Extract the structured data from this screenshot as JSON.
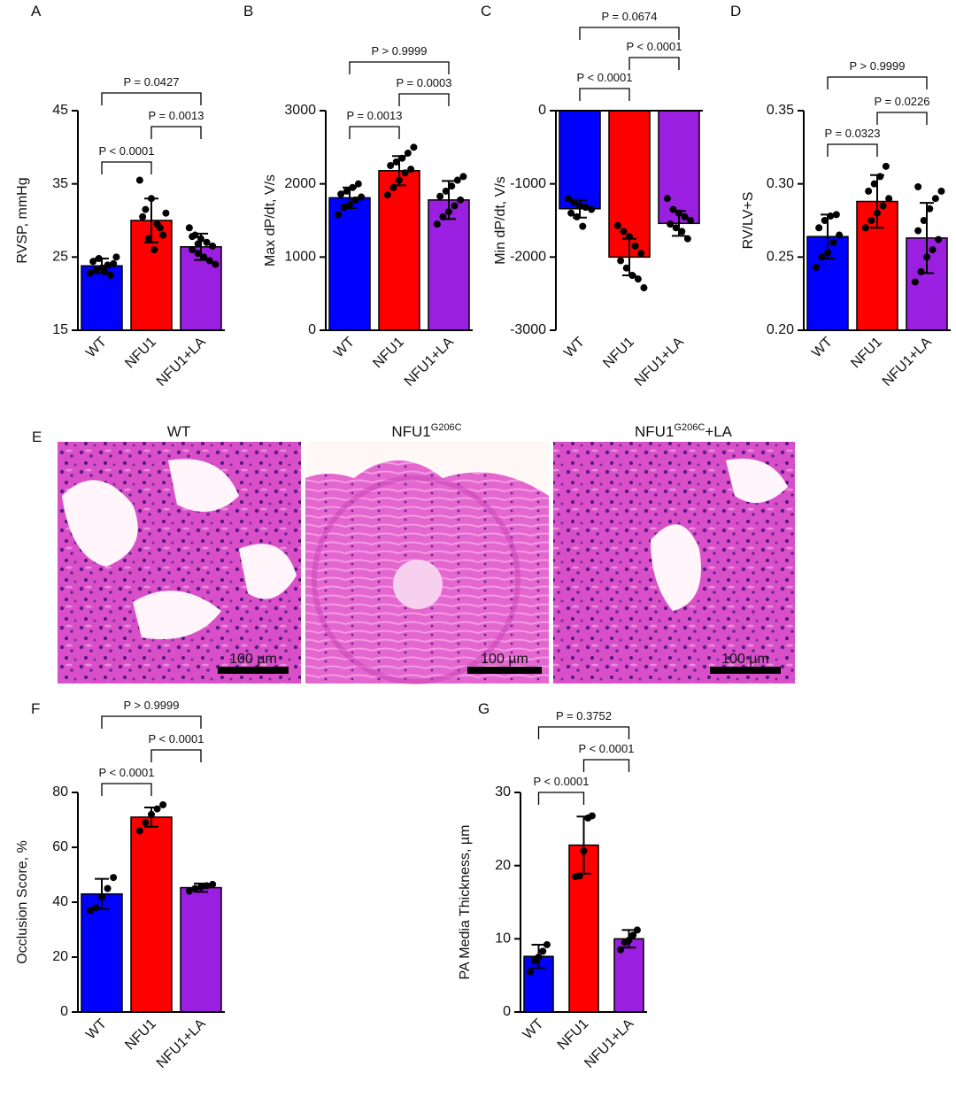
{
  "chart_data": [
    {
      "type": "bar",
      "panel_label": "A",
      "ylabel": "RVSP, mmHg",
      "categories": [
        "WT",
        "NFU1",
        "NFU1+LA"
      ],
      "colors": [
        "#0000ff",
        "#ff0000",
        "#9a1fe0"
      ],
      "values": [
        23.8,
        30.0,
        26.4
      ],
      "errors": [
        1.0,
        3.0,
        1.8
      ],
      "points": [
        [
          22.8,
          23.2,
          23.5,
          23.9,
          24.1,
          24.4,
          24.8,
          23.0,
          22.5,
          25.0
        ],
        [
          35.5,
          31.5,
          33.0,
          29.5,
          28.0,
          30.5,
          27.5,
          26.0,
          29.0,
          31.0
        ],
        [
          29.0,
          28.0,
          27.5,
          27.0,
          26.5,
          26.0,
          25.5,
          25.0,
          24.5,
          24.0,
          27.8,
          26.8
        ]
      ],
      "ylim": [
        15,
        45
      ],
      "yticks": [
        15,
        25,
        35,
        45
      ],
      "comparisons": [
        {
          "from": "WT",
          "to": "NFU1",
          "label": "P < 0.0001"
        },
        {
          "from": "NFU1",
          "to": "NFU1+LA",
          "label": "P = 0.0013"
        },
        {
          "from": "WT",
          "to": "NFU1+LA",
          "label": "P = 0.0427"
        }
      ]
    },
    {
      "type": "bar",
      "panel_label": "B",
      "ylabel": "Max dP/dt, V/s",
      "categories": [
        "WT",
        "NFU1",
        "NFU1+LA"
      ],
      "colors": [
        "#0000ff",
        "#ff0000",
        "#9a1fe0"
      ],
      "values": [
        1810,
        2180,
        1780
      ],
      "errors": [
        140,
        200,
        260
      ],
      "points": [
        [
          1580,
          1680,
          1720,
          1780,
          1820,
          1860,
          1900,
          1950,
          2000
        ],
        [
          1850,
          1950,
          2050,
          2150,
          2200,
          2250,
          2300,
          2350,
          2420,
          2500
        ],
        [
          1450,
          1550,
          1620,
          1700,
          1780,
          1830,
          1900,
          1970,
          2050,
          2100
        ]
      ],
      "ylim": [
        0,
        3000
      ],
      "yticks": [
        0,
        1000,
        2000,
        3000
      ],
      "comparisons": [
        {
          "from": "WT",
          "to": "NFU1",
          "label": "P = 0.0013"
        },
        {
          "from": "NFU1",
          "to": "NFU1+LA",
          "label": "P = 0.0003"
        },
        {
          "from": "WT",
          "to": "NFU1+LA",
          "label": "P > 0.9999"
        }
      ]
    },
    {
      "type": "bar",
      "panel_label": "C",
      "ylabel": "Min dP/dt, V/s",
      "categories": [
        "WT",
        "NFU1",
        "NFU1+LA"
      ],
      "colors": [
        "#0000ff",
        "#ff0000",
        "#9a1fe0"
      ],
      "values": [
        -1340,
        -2000,
        -1540
      ],
      "errors": [
        120,
        250,
        170
      ],
      "points": [
        [
          -1200,
          -1250,
          -1300,
          -1320,
          -1350,
          -1400,
          -1450,
          -1580
        ],
        [
          -1570,
          -1650,
          -1720,
          -1850,
          -1950,
          -2050,
          -2150,
          -2250,
          -2300,
          -2420
        ],
        [
          -1200,
          -1350,
          -1400,
          -1450,
          -1500,
          -1550,
          -1600,
          -1650,
          -1750
        ]
      ],
      "ylim": [
        -3000,
        0
      ],
      "yticks": [
        -3000,
        -2000,
        -1000,
        0
      ],
      "comparisons": [
        {
          "from": "WT",
          "to": "NFU1",
          "label": "P < 0.0001"
        },
        {
          "from": "NFU1",
          "to": "NFU1+LA",
          "label": "P < 0.0001"
        },
        {
          "from": "WT",
          "to": "NFU1+LA",
          "label": "P = 0.0674"
        }
      ]
    },
    {
      "type": "bar",
      "panel_label": "D",
      "ylabel": "RV/LV+S",
      "categories": [
        "WT",
        "NFU1",
        "NFU1+LA"
      ],
      "colors": [
        "#0000ff",
        "#ff0000",
        "#9a1fe0"
      ],
      "values": [
        0.264,
        0.288,
        0.263
      ],
      "errors": [
        0.015,
        0.018,
        0.024
      ],
      "points": [
        [
          0.243,
          0.25,
          0.253,
          0.26,
          0.265,
          0.27,
          0.275,
          0.278,
          0.279
        ],
        [
          0.27,
          0.275,
          0.28,
          0.285,
          0.29,
          0.295,
          0.3,
          0.305,
          0.312
        ],
        [
          0.233,
          0.24,
          0.25,
          0.255,
          0.262,
          0.268,
          0.275,
          0.283,
          0.29,
          0.295,
          0.298
        ]
      ],
      "ylim": [
        0.2,
        0.35
      ],
      "yticks": [
        {
          "value": 0.2,
          "label": "0.20"
        },
        0.25,
        {
          "value": 0.3,
          "label": "0.30"
        },
        0.35
      ],
      "comparisons": [
        {
          "from": "WT",
          "to": "NFU1",
          "label": "P = 0.0323"
        },
        {
          "from": "NFU1",
          "to": "NFU1+LA",
          "label": "P = 0.0226"
        },
        {
          "from": "WT",
          "to": "NFU1+LA",
          "label": "P > 0.9999"
        }
      ]
    },
    {
      "type": "bar",
      "panel_label": "F",
      "ylabel": "Occlusion Score, %",
      "categories": [
        "WT",
        "NFU1",
        "NFU1+LA"
      ],
      "colors": [
        "#0000ff",
        "#ff0000",
        "#9a1fe0"
      ],
      "values": [
        43,
        71,
        45.3
      ],
      "errors": [
        5.5,
        3.5,
        1.5
      ],
      "points": [
        [
          37,
          38,
          42,
          45,
          49
        ],
        [
          66,
          69,
          72,
          74,
          75.5
        ],
        [
          44,
          45,
          45.5,
          46,
          46.5
        ]
      ],
      "ylim": [
        0,
        80
      ],
      "yticks": [
        0,
        20,
        40,
        60,
        80
      ],
      "comparisons": [
        {
          "from": "WT",
          "to": "NFU1",
          "label": "P < 0.0001"
        },
        {
          "from": "NFU1",
          "to": "NFU1+LA",
          "label": "P < 0.0001"
        },
        {
          "from": "WT",
          "to": "NFU1+LA",
          "label": "P > 0.9999"
        }
      ]
    },
    {
      "type": "bar",
      "panel_label": "G",
      "ylabel": "PA Media Thickness, µm",
      "categories": [
        "WT",
        "NFU1",
        "NFU1+LA"
      ],
      "colors": [
        "#0000ff",
        "#ff0000",
        "#9a1fe0"
      ],
      "values": [
        7.6,
        22.8,
        10.0
      ],
      "errors": [
        1.6,
        3.9,
        1.2
      ],
      "points": [
        [
          5.5,
          7,
          7.5,
          8.3,
          9.2
        ],
        [
          18.5,
          18.6,
          22,
          26.5,
          26.8
        ],
        [
          8.5,
          9.5,
          9.8,
          10.5,
          11.2
        ]
      ],
      "ylim": [
        0,
        30
      ],
      "yticks": [
        0,
        10,
        20,
        30
      ],
      "comparisons": [
        {
          "from": "WT",
          "to": "NFU1",
          "label": "P < 0.0001"
        },
        {
          "from": "NFU1",
          "to": "NFU1+LA",
          "label": "P < 0.0001"
        },
        {
          "from": "WT",
          "to": "NFU1+LA",
          "label": "P = 0.3752"
        }
      ]
    }
  ],
  "figure_e": {
    "panel_label": "E",
    "images": [
      {
        "title": "WT",
        "scale_bar": "100 µm"
      },
      {
        "title": "NFU1",
        "title_sup": "G206C",
        "scale_bar": "100 µm"
      },
      {
        "title": "NFU1",
        "title_sup": "G206C",
        "title_suffix": "+LA",
        "scale_bar": "100 µm"
      }
    ]
  }
}
